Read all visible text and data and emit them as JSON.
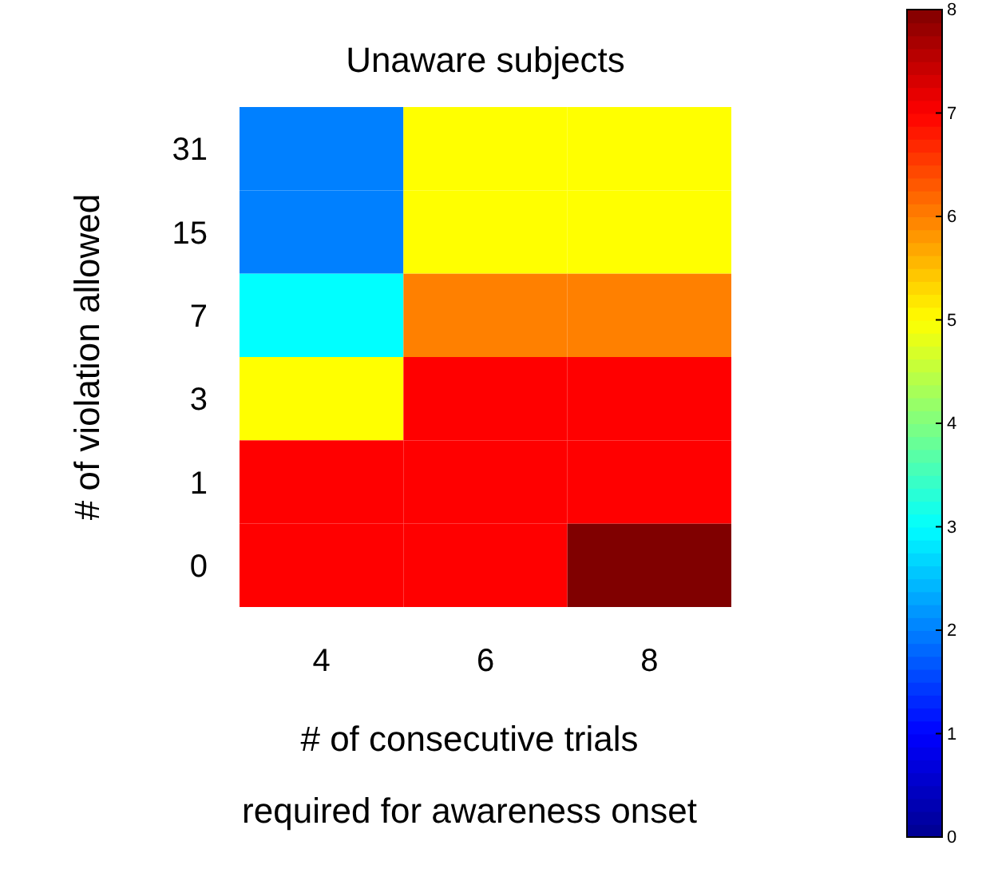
{
  "chart_data": {
    "type": "heatmap",
    "title": "Unaware subjects",
    "xlabel": "# of consecutive trials\nrequired for awareness onset",
    "ylabel": "# of violation allowed",
    "categories": [
      "4",
      "6",
      "8"
    ],
    "y_categories": [
      "31",
      "15",
      "7",
      "3",
      "1",
      "0"
    ],
    "cells": [
      [
        2,
        5,
        5
      ],
      [
        2,
        5,
        5
      ],
      [
        3,
        6,
        6
      ],
      [
        5,
        7,
        7
      ],
      [
        7,
        7,
        7
      ],
      [
        7,
        7,
        8
      ]
    ],
    "clim": [
      0,
      8
    ],
    "cticks": [
      0,
      1,
      2,
      3,
      4,
      5,
      6,
      7,
      8
    ]
  }
}
